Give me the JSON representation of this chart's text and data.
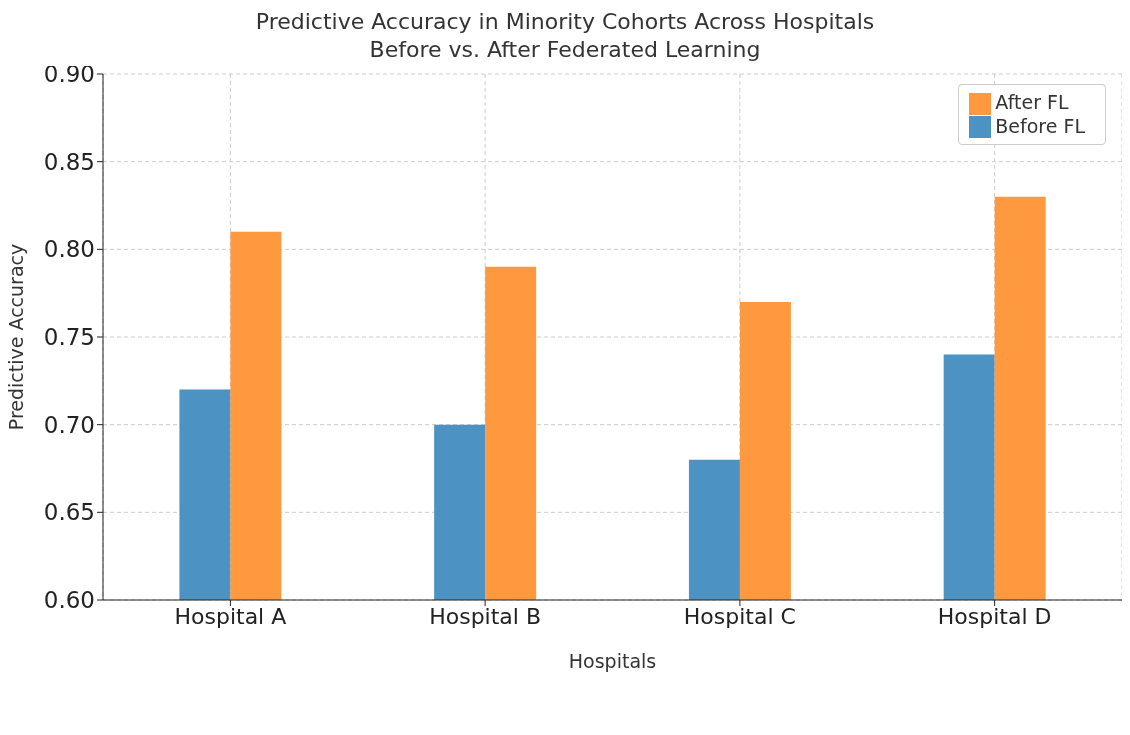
{
  "chart_data": {
    "type": "bar",
    "title": "Predictive Accuracy in Minority Cohorts Across Hospitals\nBefore vs. After Federated Learning",
    "xlabel": "Hospitals",
    "ylabel": "Predictive Accuracy",
    "categories": [
      "Hospital A",
      "Hospital B",
      "Hospital C",
      "Hospital D"
    ],
    "series": [
      {
        "name": "Before FL",
        "color": "#4c92c3",
        "values": [
          0.72,
          0.7,
          0.68,
          0.74
        ]
      },
      {
        "name": "After FL",
        "color": "#ff993f",
        "values": [
          0.81,
          0.79,
          0.77,
          0.83
        ]
      }
    ],
    "ylim": [
      0.6,
      0.9
    ],
    "yticks": [
      {
        "value": 0.6,
        "label": "0.60"
      },
      {
        "value": 0.65,
        "label": "0.65"
      },
      {
        "value": 0.7,
        "label": "0.70"
      },
      {
        "value": 0.75,
        "label": "0.75"
      },
      {
        "value": 0.8,
        "label": "0.80"
      },
      {
        "value": 0.85,
        "label": "0.85"
      },
      {
        "value": 0.9,
        "label": "0.90"
      }
    ],
    "grid": true,
    "legend": "top right"
  }
}
